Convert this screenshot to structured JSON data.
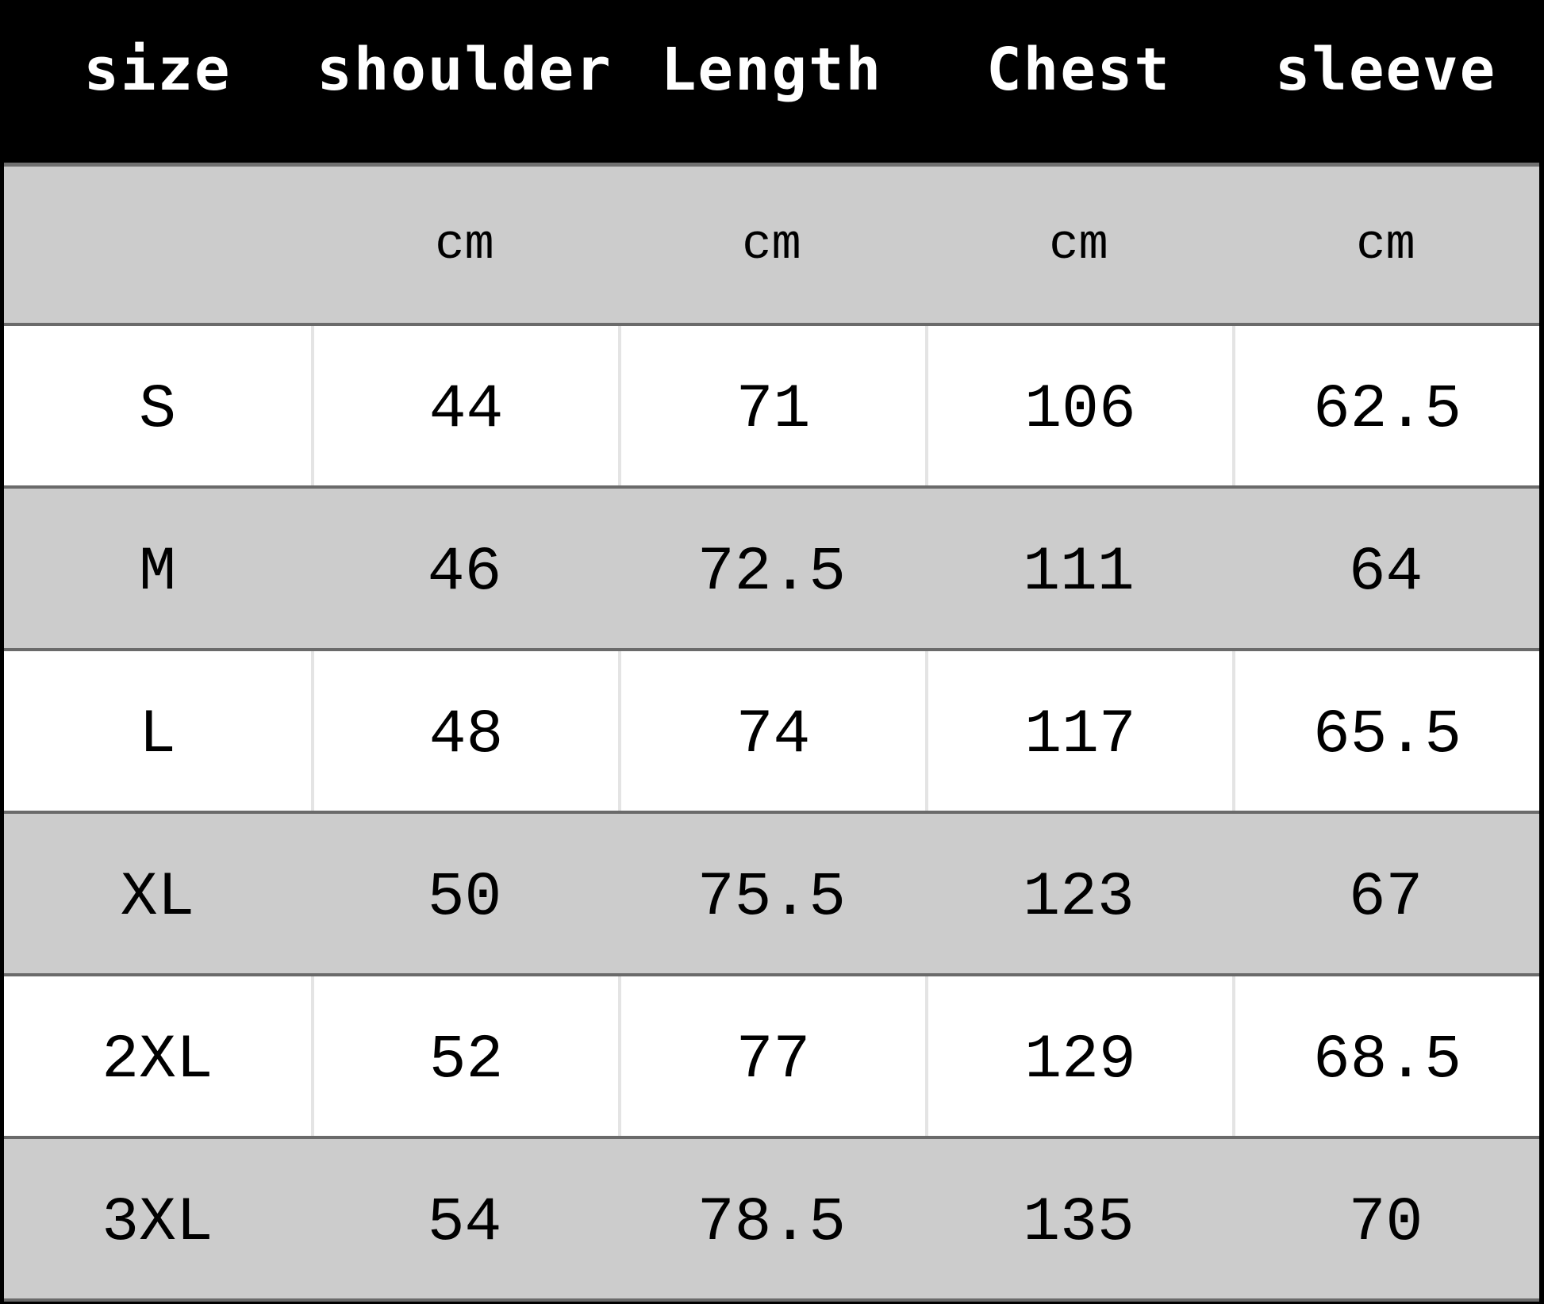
{
  "table": {
    "headers": [
      "size",
      "shoulder",
      "Length",
      "Chest",
      "sleeve"
    ],
    "units": [
      "",
      "cm",
      "cm",
      "cm",
      "cm"
    ],
    "rows": [
      [
        "S",
        "44",
        "71",
        "106",
        "62.5"
      ],
      [
        "M",
        "46",
        "72.5",
        "111",
        "64"
      ],
      [
        "L",
        "48",
        "74",
        "117",
        "65.5"
      ],
      [
        "XL",
        "50",
        "75.5",
        "123",
        "67"
      ],
      [
        "2XL",
        "52",
        "77",
        "129",
        "68.5"
      ],
      [
        "3XL",
        "54",
        "78.5",
        "135",
        "70"
      ]
    ]
  },
  "colors": {
    "header_bg": "#000000",
    "header_text": "#ffffff",
    "gray_row": "#cccccc",
    "white_row": "#ffffff"
  }
}
